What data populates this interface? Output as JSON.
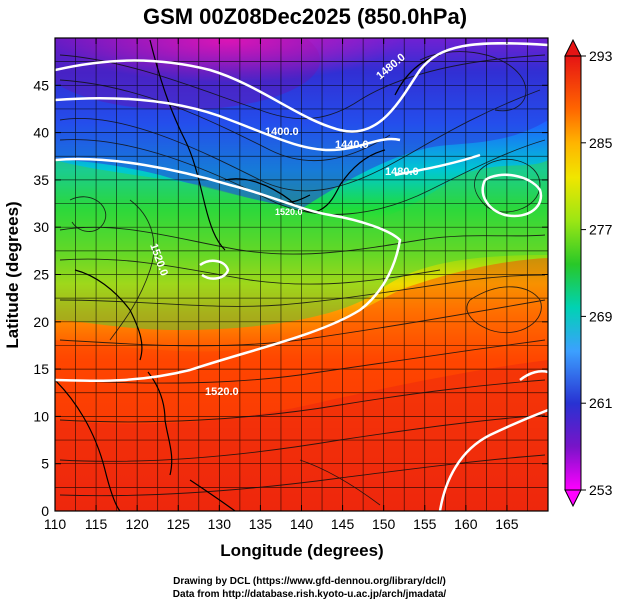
{
  "title": "GSM 00Z08Dec2025 (850.0hPa)",
  "axes": {
    "xlabel": "Longitude (degrees)",
    "ylabel": "Latitude  (degrees)",
    "x_ticks": [
      "110",
      "115",
      "120",
      "125",
      "130",
      "135",
      "140",
      "145",
      "150",
      "155",
      "160",
      "165"
    ],
    "y_ticks": [
      "0",
      "5",
      "10",
      "15",
      "20",
      "25",
      "30",
      "35",
      "40",
      "45"
    ],
    "xlim": [
      110,
      170
    ],
    "ylim": [
      0,
      50
    ]
  },
  "colorbar": {
    "labels": [
      "293",
      "285",
      "277",
      "269",
      "261",
      "253"
    ],
    "range": [
      253,
      293
    ],
    "colors": [
      "#ff00ff",
      "#2020c8",
      "#3c8cff",
      "#00d7c8",
      "#28c828",
      "#c8f000",
      "#ffe600",
      "#ff9600",
      "#ff3c00",
      "#e61414"
    ]
  },
  "contour_labels": [
    "1400.0",
    "1440.0",
    "1480.0",
    "1520.0",
    "1520.0",
    "1520.0",
    "1480.0"
  ],
  "credits": {
    "line1": "Drawing by DCL (https://www.gfd-dennou.org/library/dcl/)",
    "line2": "Data from http://database.rish.kyoto-u.ac.jp/arch/jmadata/"
  }
}
